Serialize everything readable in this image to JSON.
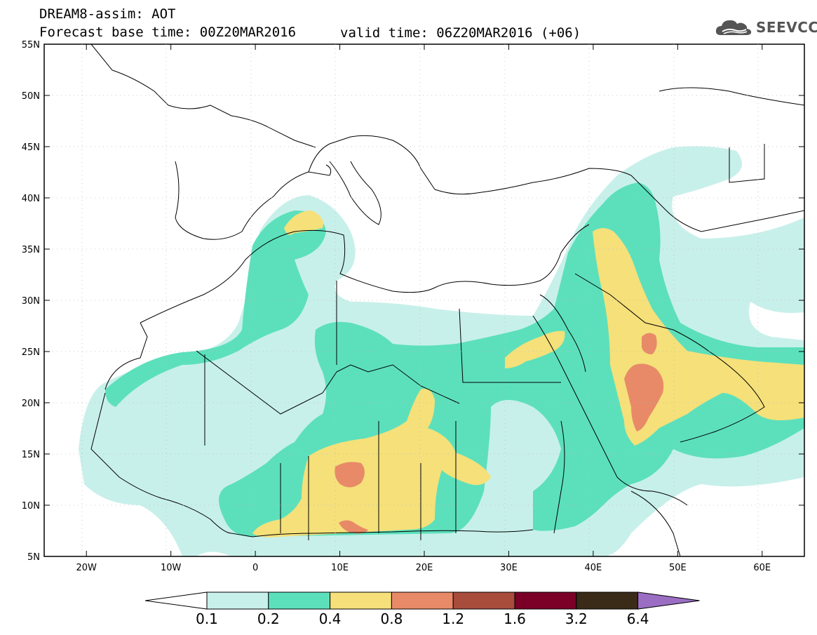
{
  "header": {
    "line1": "DREAM8-assim: AOT",
    "line2": "Forecast base time: 00Z20MAR2016",
    "valid": "valid time: 06Z20MAR2016 (+06)"
  },
  "logo": {
    "text": "SEEVCCC",
    "icon": "cloud-icon"
  },
  "map": {
    "lat_labels": [
      "55N",
      "50N",
      "45N",
      "40N",
      "35N",
      "30N",
      "25N",
      "20N",
      "15N",
      "10N",
      "5N"
    ],
    "lon_labels": [
      "20W",
      "10W",
      "0",
      "10E",
      "20E",
      "30E",
      "40E",
      "50E",
      "60E"
    ],
    "lat_range": [
      5,
      55
    ],
    "lon_range": [
      -25,
      65
    ]
  },
  "colorbar": {
    "labels": [
      "0.1",
      "0.2",
      "0.4",
      "0.8",
      "1.2",
      "1.6",
      "3.2",
      "6.4"
    ],
    "colors": [
      "#c8f0ea",
      "#5ce0bc",
      "#f5e07a",
      "#e88a68",
      "#a84c3c",
      "#7a0028",
      "#3a2a18",
      "#9b6ec4"
    ]
  }
}
